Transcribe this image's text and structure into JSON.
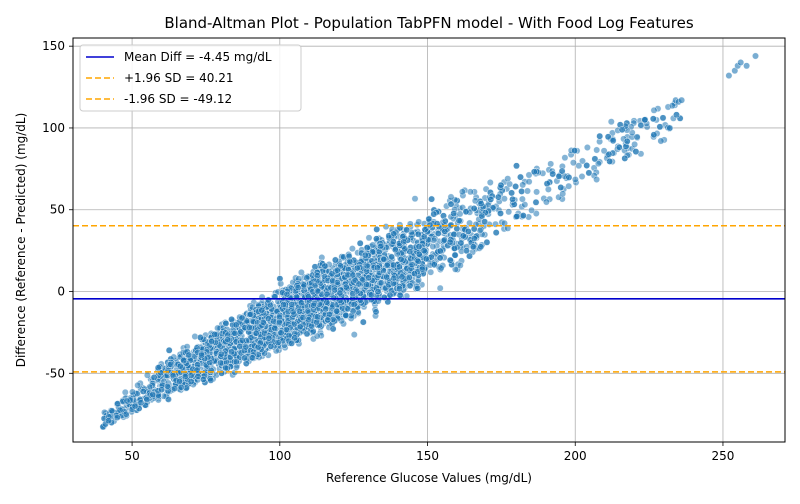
{
  "chart_data": {
    "type": "scatter",
    "title": "Bland-Altman Plot - Population TabPFN model - With Food Log Features",
    "xlabel": "Reference Glucose Values (mg/dL)",
    "ylabel": "Difference (Reference - Predicted) (mg/dL)",
    "xlim": [
      30,
      271
    ],
    "ylim": [
      -92,
      155
    ],
    "xticks": [
      50,
      100,
      150,
      200,
      250
    ],
    "yticks": [
      -50,
      0,
      50,
      100,
      150
    ],
    "grid": true,
    "legend_position": "upper-left",
    "colors": {
      "points": "#1f77b4",
      "mean_line": "#0000cd",
      "sd_lines": "#ffa500"
    },
    "reference_lines": [
      {
        "name": "mean",
        "label": "Mean Diff = -4.45 mg/dL",
        "value": -4.45,
        "style": "solid",
        "color": "#0000cd"
      },
      {
        "name": "upper-loa",
        "label": "+1.96 SD = 40.21",
        "value": 40.21,
        "style": "dashed",
        "color": "#ffa500"
      },
      {
        "name": "lower-loa",
        "label": "-1.96 SD = -49.12",
        "value": -49.12,
        "style": "dashed",
        "color": "#ffa500"
      }
    ],
    "scatter_trend": {
      "description": "approximately linear band of points",
      "x_range": [
        40,
        261
      ],
      "trend_points": [
        [
          40,
          -80
        ],
        [
          50,
          -67
        ],
        [
          70,
          -45
        ],
        [
          100,
          -17
        ],
        [
          150,
          27
        ],
        [
          200,
          75
        ],
        [
          235,
          110
        ],
        [
          260,
          143
        ]
      ],
      "band_half_width": [
        [
          40,
          4
        ],
        [
          60,
          10
        ],
        [
          100,
          17
        ],
        [
          150,
          19
        ],
        [
          200,
          14
        ],
        [
          235,
          8
        ],
        [
          261,
          4
        ]
      ]
    },
    "series": [
      {
        "x": [
          41,
          42,
          45,
          48,
          50,
          51,
          53,
          55,
          57,
          60,
          62,
          66,
          68,
          72,
          252,
          254,
          255,
          256,
          258,
          261,
          234,
          235,
          236,
          232,
          229
        ],
        "y": [
          -81,
          -79,
          -77,
          -75,
          -72,
          -70,
          -68,
          -66,
          -63,
          -60,
          -58,
          -55,
          -52,
          -48,
          132,
          135,
          138,
          140,
          138,
          144,
          117,
          116,
          117,
          100,
          92
        ]
      }
    ]
  }
}
